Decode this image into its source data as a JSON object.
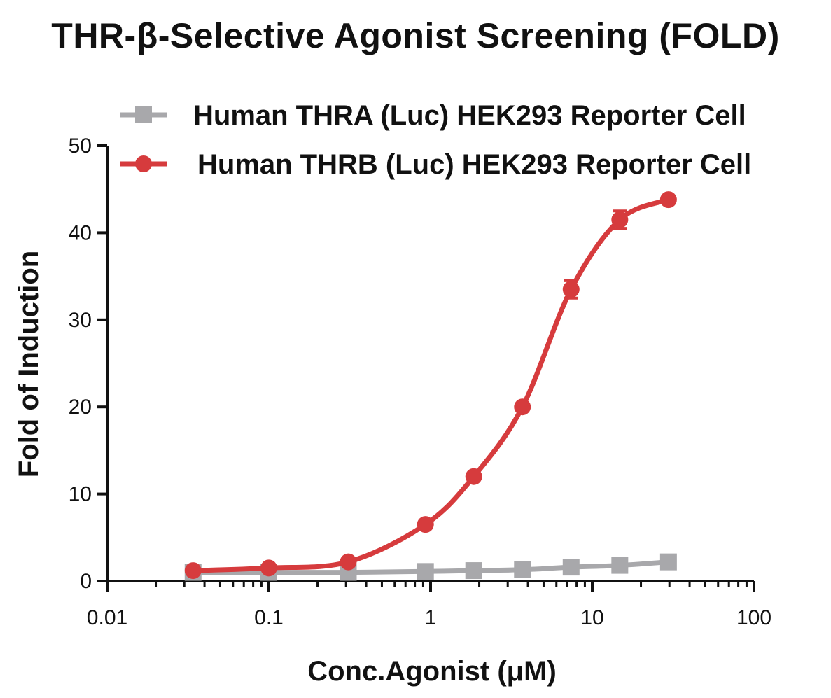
{
  "chart_data": {
    "type": "line",
    "title": "THR-β-Selective Agonist Screening (FOLD)",
    "xlabel": "Conc.Agonist (μM)",
    "ylabel": "Fold of Induction",
    "x_scale": "log",
    "xlim": [
      0.01,
      100
    ],
    "ylim": [
      0,
      50
    ],
    "x_ticks": [
      "0.01",
      "0.1",
      "1",
      "10",
      "100"
    ],
    "y_ticks": [
      "0",
      "10",
      "20",
      "30",
      "40",
      "50"
    ],
    "grid": false,
    "legend_position": "top",
    "series": [
      {
        "name": "Human THRA (Luc) HEK293 Reporter Cell",
        "color": "#a8a8ab",
        "marker": "square",
        "x": [
          0.034,
          0.1,
          0.31,
          0.93,
          1.85,
          3.7,
          7.4,
          14.8,
          29.6
        ],
        "y": [
          1.0,
          1.0,
          1.0,
          1.1,
          1.2,
          1.3,
          1.6,
          1.8,
          2.2
        ]
      },
      {
        "name": "Human THRB (Luc) HEK293 Reporter Cell",
        "color": "#d63b3d",
        "marker": "circle",
        "x": [
          0.034,
          0.1,
          0.31,
          0.93,
          1.85,
          3.7,
          7.4,
          14.8,
          29.6
        ],
        "y": [
          1.2,
          1.5,
          2.2,
          6.5,
          12.0,
          20.0,
          33.5,
          41.5,
          43.8
        ],
        "error": [
          0,
          0,
          0,
          0,
          0,
          0,
          1.0,
          1.0,
          0
        ]
      }
    ]
  }
}
